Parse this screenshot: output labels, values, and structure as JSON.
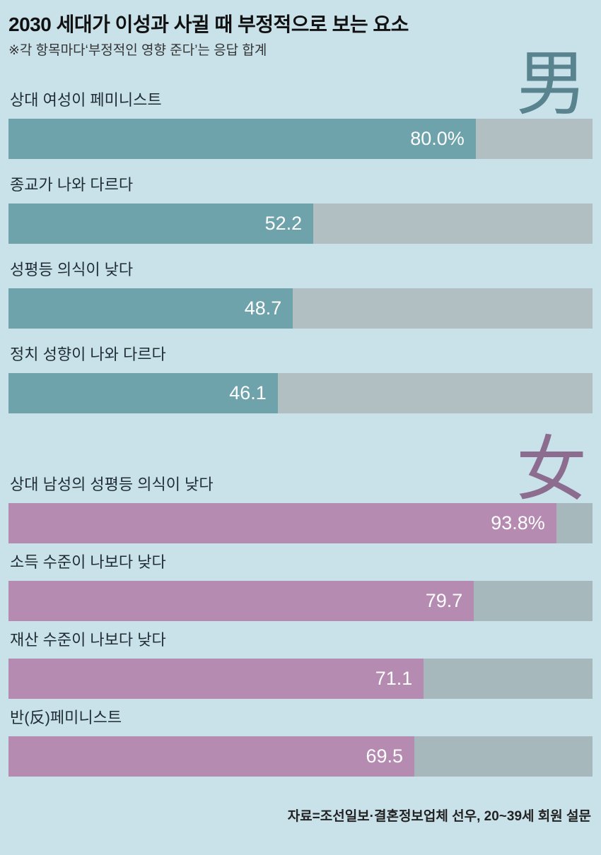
{
  "colors": {
    "background": "#c9e2ea",
    "title_text": "#111111",
    "label_text": "#1f2d33",
    "value_text": "#ffffff",
    "footer_text": "#222222"
  },
  "chart_data": {
    "type": "bar",
    "orientation": "horizontal",
    "title": "2030 세대가 이성과 사귈 때 부정적으로 보는 요소",
    "subtitle": "※각 항목마다‘부정적인 영향 준다’는 응답 합계",
    "xlim": [
      0,
      100
    ],
    "grid": false,
    "legend": "none",
    "groups": [
      {
        "label": "男",
        "glyph_color": "#59838f",
        "bar_color": "#6fa3ac",
        "track_color": "#b1bec2",
        "categories": [
          "상대 여성이 페미니스트",
          "종교가 나와 다르다",
          "성평등 의식이 낮다",
          "정치 성향이 나와 다르다"
        ],
        "values": [
          80.0,
          52.2,
          48.7,
          46.1
        ],
        "value_labels": [
          "80.0%",
          "52.2",
          "48.7",
          "46.1"
        ]
      },
      {
        "label": "女",
        "glyph_color": "#8c6d90",
        "bar_color": "#b58bb2",
        "track_color": "#a7b8bc",
        "categories": [
          "상대 남성의 성평등 의식이 낮다",
          "소득 수준이 나보다 낮다",
          "재산 수준이 나보다 낮다",
          "반(反)페미니스트"
        ],
        "values": [
          93.8,
          79.7,
          71.1,
          69.5
        ],
        "value_labels": [
          "93.8%",
          "79.7",
          "71.1",
          "69.5"
        ]
      }
    ],
    "source": "자료=조선일보·결혼정보업체 선우, 20~39세 회원 설문"
  }
}
